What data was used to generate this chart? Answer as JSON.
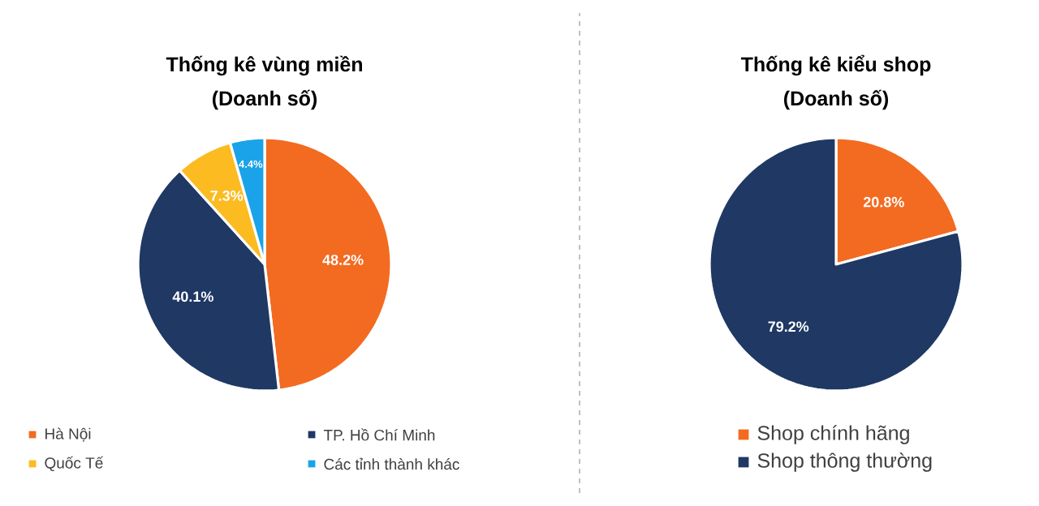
{
  "chart_data": [
    {
      "type": "pie",
      "title": "Thống kê vùng miền",
      "subtitle": "(Doanh số)",
      "categories": [
        "Hà Nội",
        "TP. Hồ Chí Minh",
        "Quốc Tế",
        "Các tỉnh thành khác"
      ],
      "values": [
        48.2,
        40.1,
        7.3,
        4.4
      ],
      "colors": [
        "#f26b21",
        "#1f3864",
        "#fbbb21",
        "#1aa3e8"
      ],
      "value_labels": [
        "48.2%",
        "40.1%",
        "7.3%",
        "4.4%"
      ],
      "legend": "bottom"
    },
    {
      "type": "pie",
      "title": "Thống kê kiểu shop",
      "subtitle": "(Doanh số)",
      "categories": [
        "Shop chính hãng",
        "Shop thông thường"
      ],
      "values": [
        20.8,
        79.2
      ],
      "colors": [
        "#f26b21",
        "#1f3864"
      ],
      "value_labels": [
        "20.8%",
        "79.2%"
      ],
      "legend": "bottom"
    }
  ]
}
